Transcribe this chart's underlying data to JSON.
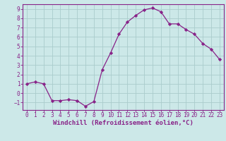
{
  "x": [
    0,
    1,
    2,
    3,
    4,
    5,
    6,
    7,
    8,
    9,
    10,
    11,
    12,
    13,
    14,
    15,
    16,
    17,
    18,
    19,
    20,
    21,
    22,
    23
  ],
  "y": [
    1.0,
    1.2,
    1.0,
    -0.8,
    -0.8,
    -0.7,
    -0.8,
    -1.4,
    -0.9,
    2.5,
    4.3,
    6.3,
    7.6,
    8.3,
    8.9,
    9.1,
    8.7,
    7.4,
    7.4,
    6.8,
    6.3,
    5.3,
    4.7,
    3.6
  ],
  "line_color": "#882288",
  "marker": "D",
  "marker_size": 2.2,
  "background_color": "#cce8e8",
  "grid_color": "#aacccc",
  "xlabel": "Windchill (Refroidissement éolien,°C)",
  "xlabel_color": "#882288",
  "tick_color": "#882288",
  "spine_color": "#882288",
  "xlim": [
    -0.5,
    23.5
  ],
  "ylim": [
    -1.8,
    9.5
  ],
  "yticks": [
    -1,
    0,
    1,
    2,
    3,
    4,
    5,
    6,
    7,
    8,
    9
  ],
  "xticks": [
    0,
    1,
    2,
    3,
    4,
    5,
    6,
    7,
    8,
    9,
    10,
    11,
    12,
    13,
    14,
    15,
    16,
    17,
    18,
    19,
    20,
    21,
    22,
    23
  ],
  "tick_fontsize": 5.5,
  "xlabel_fontsize": 6.5
}
